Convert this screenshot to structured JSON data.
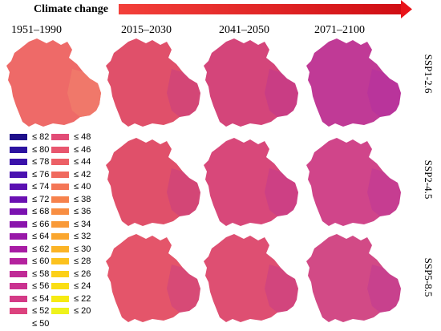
{
  "header": {
    "title": "Climate change",
    "arrow_color": "#e8141a"
  },
  "periods": [
    "1951–1990",
    "2015–2030",
    "2041–2050",
    "2071–2100"
  ],
  "scenarios": [
    "SSP1-2.6",
    "SSP2-4.5",
    "SSP5-8.5"
  ],
  "maps": {
    "baseline": {
      "period": "1951–1990",
      "fill": "#ee6a68",
      "east_fill": "#f07a6a"
    },
    "rows": [
      {
        "scenario": "SSP1-2.6",
        "fills": [
          "#e0506a",
          "#d4457a",
          "#c03a96"
        ]
      },
      {
        "scenario": "SSP2-4.5",
        "fills": [
          "#e0506a",
          "#d8487a",
          "#d0458a"
        ]
      },
      {
        "scenario": "SSP5-8.5",
        "fills": [
          "#e4556a",
          "#de4f72",
          "#d24a86"
        ]
      }
    ]
  },
  "legend": {
    "column1": [
      {
        "label": "≤ 82",
        "color": "#1e0f8a"
      },
      {
        "label": "≤ 80",
        "color": "#2b12a0"
      },
      {
        "label": "≤ 78",
        "color": "#3a12aa"
      },
      {
        "label": "≤ 76",
        "color": "#4a12b0"
      },
      {
        "label": "≤ 74",
        "color": "#5a10b2"
      },
      {
        "label": "≤ 72",
        "color": "#6a10b2"
      },
      {
        "label": "≤ 68",
        "color": "#7a12b0"
      },
      {
        "label": "≤ 66",
        "color": "#8a14ac"
      },
      {
        "label": "≤ 64",
        "color": "#9818a8"
      },
      {
        "label": "≤ 62",
        "color": "#a81ca4"
      },
      {
        "label": "≤ 60",
        "color": "#b4229e"
      },
      {
        "label": "≤ 58",
        "color": "#c02a96"
      },
      {
        "label": "≤ 56",
        "color": "#ca3290"
      },
      {
        "label": "≤ 54",
        "color": "#d43a86"
      },
      {
        "label": "≤ 52",
        "color": "#dc427e"
      },
      {
        "label": "≤ 50",
        "color": ""
      }
    ],
    "column2": [
      {
        "label": "≤ 48",
        "color": "#e24c76"
      },
      {
        "label": "≤ 46",
        "color": "#e8566e"
      },
      {
        "label": "≤ 44",
        "color": "#ec6066"
      },
      {
        "label": "≤ 42",
        "color": "#f06a5e"
      },
      {
        "label": "≤ 40",
        "color": "#f47656"
      },
      {
        "label": "≤ 38",
        "color": "#f6824c"
      },
      {
        "label": "≤ 36",
        "color": "#f88e42"
      },
      {
        "label": "≤ 34",
        "color": "#f99a38"
      },
      {
        "label": "≤ 32",
        "color": "#faa62e"
      },
      {
        "label": "≤ 30",
        "color": "#fbb426"
      },
      {
        "label": "≤ 28",
        "color": "#fcc21e"
      },
      {
        "label": "≤ 26",
        "color": "#fcd018"
      },
      {
        "label": "≤ 24",
        "color": "#fade14"
      },
      {
        "label": "≤ 22",
        "color": "#f6ea12"
      },
      {
        "label": "≤ 20",
        "color": "#eef21c"
      }
    ]
  }
}
